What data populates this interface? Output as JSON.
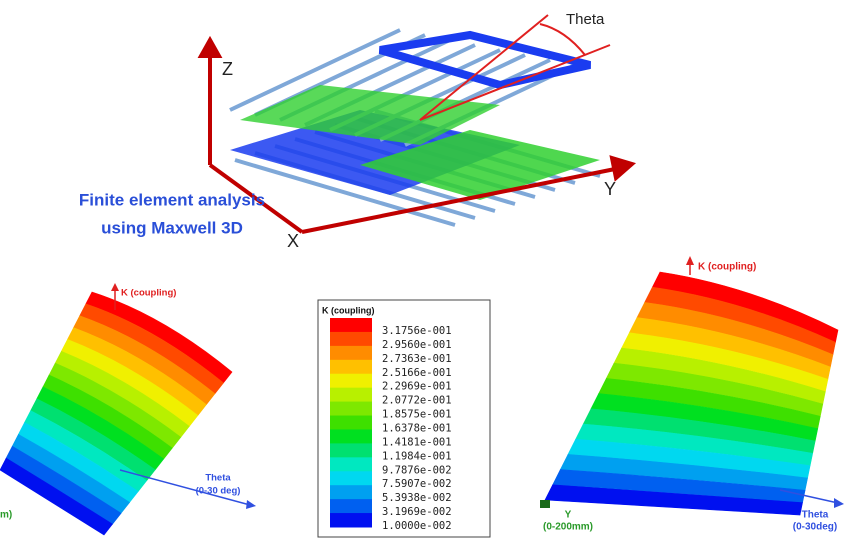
{
  "top_figure": {
    "theta_label": "Theta",
    "axis_z": "Z",
    "axis_y": "Y",
    "axis_x": "X",
    "caption": [
      "Finite element analysis",
      "using Maxwell 3D"
    ]
  },
  "left_plot": {
    "k_axis": "K (coupling)",
    "theta_axis": [
      "Theta",
      "(0-30 deg)"
    ],
    "y_axis_fragment": "m)"
  },
  "legend": {
    "title": "K (coupling)",
    "entries": [
      {
        "label": "3.1756e-001",
        "color": "#ff0000"
      },
      {
        "label": "2.9560e-001",
        "color": "#ff4a00"
      },
      {
        "label": "2.7363e-001",
        "color": "#ff8c00"
      },
      {
        "label": "2.5166e-001",
        "color": "#ffc000"
      },
      {
        "label": "2.2969e-001",
        "color": "#f0f000"
      },
      {
        "label": "2.0772e-001",
        "color": "#b8f000"
      },
      {
        "label": "1.8575e-001",
        "color": "#7ee800"
      },
      {
        "label": "1.6378e-001",
        "color": "#3ee000"
      },
      {
        "label": "1.4181e-001",
        "color": "#00e020"
      },
      {
        "label": "1.1984e-001",
        "color": "#00e070"
      },
      {
        "label": "9.7876e-002",
        "color": "#00e8c0"
      },
      {
        "label": "7.5907e-002",
        "color": "#00d8f0"
      },
      {
        "label": "5.3938e-002",
        "color": "#00a0f0"
      },
      {
        "label": "3.1969e-002",
        "color": "#0060f0"
      },
      {
        "label": "1.0000e-002",
        "color": "#0010f0"
      }
    ]
  },
  "right_plot": {
    "k_axis": "K (coupling)",
    "y_axis": [
      "Y",
      "(0-200mm)"
    ],
    "theta_axis": [
      "Theta",
      "(0-30deg)"
    ]
  }
}
